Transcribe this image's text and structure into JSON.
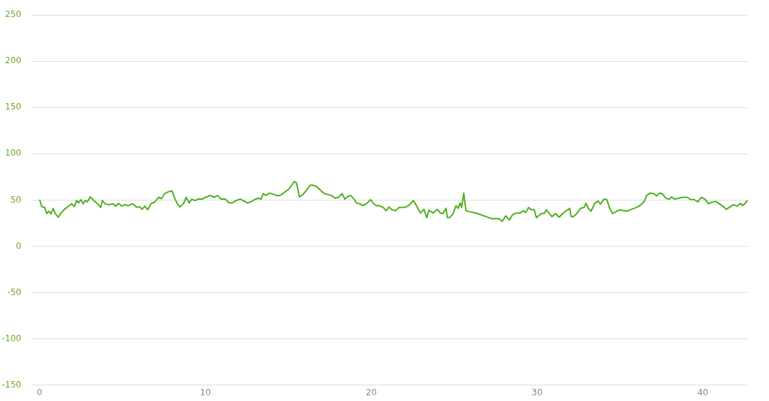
{
  "chart_data": {
    "type": "line",
    "x": [
      0,
      0.13,
      0.3,
      0.43,
      0.56,
      0.69,
      0.82,
      0.94,
      1.12,
      1.29,
      1.5,
      1.72,
      1.93,
      2.1,
      2.23,
      2.36,
      2.49,
      2.62,
      2.75,
      2.88,
      3.05,
      3.3,
      3.48,
      3.69,
      3.78,
      3.95,
      4.16,
      4.42,
      4.59,
      4.76,
      4.94,
      5.15,
      5.36,
      5.62,
      5.84,
      6.05,
      6.18,
      6.35,
      6.52,
      6.74,
      6.95,
      7.17,
      7.34,
      7.55,
      7.77,
      7.98,
      8.11,
      8.28,
      8.45,
      8.67,
      8.84,
      9.01,
      9.18,
      9.36,
      9.57,
      9.79,
      10,
      10.3,
      10.52,
      10.73,
      10.94,
      11.2,
      11.42,
      11.63,
      11.85,
      12.1,
      12.32,
      12.53,
      12.75,
      12.96,
      13.18,
      13.35,
      13.48,
      13.65,
      13.86,
      14.16,
      14.38,
      14.59,
      14.81,
      15.02,
      15.24,
      15.36,
      15.49,
      15.67,
      15.88,
      16.09,
      16.31,
      16.52,
      16.74,
      16.95,
      17.17,
      17.38,
      17.6,
      17.81,
      18.03,
      18.24,
      18.41,
      18.58,
      18.76,
      18.97,
      19.1,
      19.31,
      19.48,
      19.66,
      19.83,
      19.96,
      20.13,
      20.3,
      20.47,
      20.73,
      20.9,
      21.07,
      21.24,
      21.46,
      21.67,
      21.89,
      22.1,
      22.32,
      22.53,
      22.75,
      22.96,
      23.18,
      23.35,
      23.48,
      23.73,
      23.99,
      24.16,
      24.33,
      24.51,
      24.59,
      24.76,
      24.94,
      25.11,
      25.24,
      25.36,
      25.45,
      25.58,
      25.71,
      26.39,
      27.25,
      27.68,
      27.9,
      28.11,
      28.33,
      28.54,
      28.76,
      28.97,
      29.18,
      29.31,
      29.49,
      29.61,
      29.83,
      29.96,
      30.09,
      30.26,
      30.43,
      30.56,
      30.69,
      30.9,
      31.12,
      31.33,
      31.55,
      31.76,
      31.97,
      32.06,
      32.19,
      32.4,
      32.62,
      32.83,
      32.96,
      33.09,
      33.26,
      33.48,
      33.69,
      33.82,
      34.03,
      34.21,
      34.38,
      34.55,
      34.81,
      34.98,
      35.19,
      35.41,
      35.62,
      35.84,
      36.05,
      36.27,
      36.48,
      36.61,
      36.82,
      37.04,
      37.21,
      37.38,
      37.55,
      37.77,
      37.98,
      38.11,
      38.28,
      38.54,
      38.75,
      39.06,
      39.27,
      39.48,
      39.7,
      39.91,
      40.13,
      40.34,
      40.52,
      40.77,
      40.99,
      41.2,
      41.42,
      41.63,
      41.85,
      42.06,
      42.27,
      42.4,
      42.62,
      42.7
    ],
    "series": [
      {
        "color": "#4caf1e",
        "values": [
          50.5,
          43,
          42,
          35.5,
          38,
          35,
          41,
          35.5,
          31.5,
          36,
          40,
          43,
          46,
          43,
          49.5,
          47,
          50.5,
          46,
          49.5,
          48,
          53.5,
          49,
          46,
          42,
          49.5,
          46,
          45,
          46,
          43.5,
          46.5,
          43.5,
          45,
          44,
          46,
          42.5,
          42.5,
          40,
          43.5,
          39.5,
          46.5,
          48,
          53,
          51.5,
          57,
          59,
          60,
          53.5,
          47,
          42.5,
          46,
          53,
          47,
          51,
          49.5,
          51,
          51,
          53,
          55,
          53,
          55,
          51,
          51,
          47,
          47,
          49.5,
          51,
          49,
          47,
          48,
          50.5,
          52,
          51,
          57,
          55,
          57.5,
          56,
          54.5,
          56,
          59,
          61.5,
          67,
          70,
          68.5,
          53.5,
          56,
          60.5,
          66,
          66,
          64,
          60.5,
          57,
          56,
          55,
          52,
          53,
          57,
          51,
          54,
          55,
          51,
          47,
          46,
          44,
          45.5,
          48,
          50.5,
          46.5,
          44,
          44,
          42,
          38.5,
          42.5,
          39.5,
          38.5,
          42,
          42,
          42.5,
          45,
          49.5,
          43.5,
          36,
          40,
          31,
          39,
          36,
          40,
          36,
          35.5,
          41,
          31,
          31.5,
          35.5,
          44,
          41,
          47,
          42,
          57.5,
          38.5,
          35.5,
          30,
          30,
          27,
          33,
          28.5,
          34.5,
          36,
          36,
          38.5,
          36.5,
          42,
          40,
          39.5,
          31,
          33,
          35.5,
          35.5,
          39.5,
          36.5,
          32,
          35.5,
          31.5,
          35.5,
          38.5,
          41,
          32,
          32,
          35.5,
          41,
          42,
          46.5,
          41,
          38,
          46.5,
          49,
          45.5,
          51,
          50.5,
          41,
          35.5,
          38,
          39.5,
          38.5,
          38,
          39.5,
          41,
          42.5,
          45,
          49,
          55,
          57.5,
          57,
          54.5,
          57.5,
          57,
          52,
          51,
          53.5,
          51,
          52,
          53,
          53,
          50.5,
          50.5,
          48,
          53,
          51,
          46,
          47.5,
          48.5,
          46,
          43.5,
          40,
          42.5,
          45,
          43.5,
          46.5,
          44,
          48,
          50
        ]
      }
    ],
    "xlim": [
      -0.5,
      42.7
    ],
    "ylim": [
      -150,
      250
    ],
    "xticks": [
      0,
      10,
      20,
      30,
      40
    ],
    "yticks": [
      -150,
      -100,
      -50,
      0,
      50,
      100,
      150,
      200,
      250
    ],
    "grid": "y",
    "legend": false,
    "marker": "none",
    "line_style": "solid"
  }
}
